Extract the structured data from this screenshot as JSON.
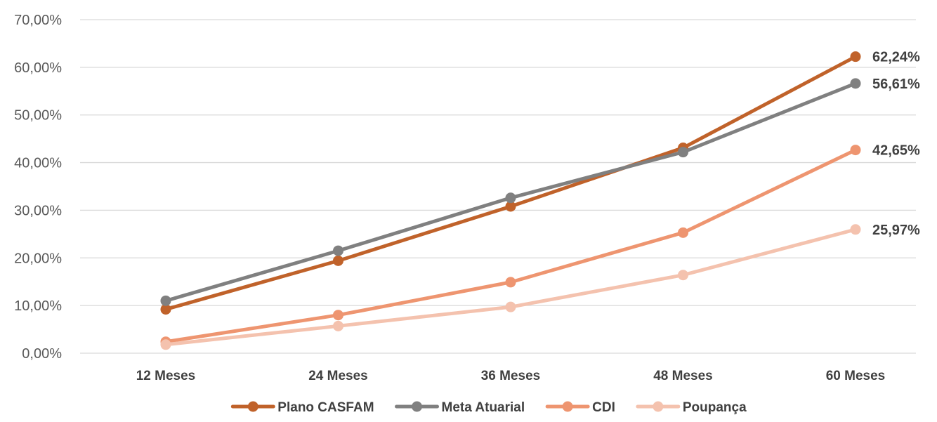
{
  "chart_data": {
    "type": "line",
    "title": "",
    "xlabel": "",
    "ylabel": "",
    "categories": [
      "12 Meses",
      "24 Meses",
      "36 Meses",
      "48 Meses",
      "60 Meses"
    ],
    "ylim": [
      0,
      70
    ],
    "yticks": [
      0,
      10,
      20,
      30,
      40,
      50,
      60,
      70
    ],
    "ytick_labels": [
      "0,00%",
      "10,00%",
      "20,00%",
      "30,00%",
      "40,00%",
      "50,00%",
      "60,00%",
      "70,00%"
    ],
    "grid": "horizontal",
    "legend_position": "bottom",
    "series": [
      {
        "name": "Plano CASFAM",
        "color": "#C0622A",
        "values": [
          9.2,
          19.4,
          30.8,
          43.1,
          62.24
        ],
        "end_label": "62,24%"
      },
      {
        "name": "Meta Atuarial",
        "color": "#808080",
        "values": [
          11.0,
          21.5,
          32.6,
          42.2,
          56.61
        ],
        "end_label": "56,61%"
      },
      {
        "name": "CDI",
        "color": "#EE9570",
        "values": [
          2.4,
          8.0,
          14.9,
          25.3,
          42.65
        ],
        "end_label": "42,65%"
      },
      {
        "name": "Poupança",
        "color": "#F4C2AE",
        "values": [
          1.8,
          5.7,
          9.7,
          16.4,
          25.97
        ],
        "end_label": "25,97%"
      }
    ]
  }
}
